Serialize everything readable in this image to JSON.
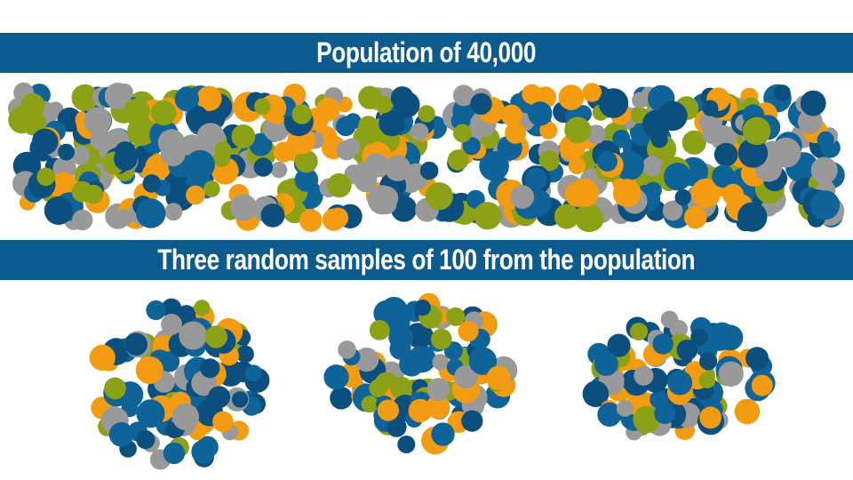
{
  "colors": {
    "banner": "#0B5B8F",
    "dot_colors": [
      "#F39C12",
      "#0B4F7E",
      "#8DA116",
      "#999999",
      "#0E6398"
    ]
  },
  "population": {
    "title": "Population of 40,000"
  },
  "samples": {
    "title": "Three random samples of 100 from the population",
    "count": 3
  }
}
